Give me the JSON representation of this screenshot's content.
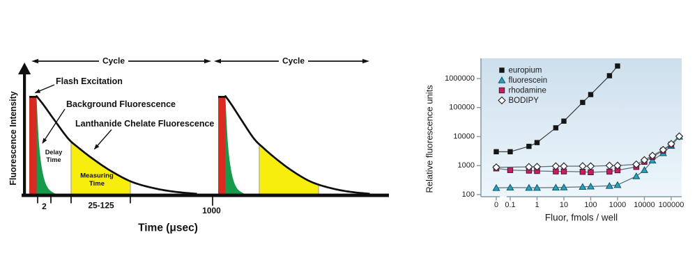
{
  "page": {
    "background": "#ffffff"
  },
  "chart_data": [
    {
      "id": "time-resolved-fluorescence-cycle",
      "type": "area",
      "title": "",
      "xlabel": "Time (μsec)",
      "ylabel": "Fluorescence Intensity",
      "cycle_label": "Cycle",
      "annotations": {
        "flash": "Flash Excitation",
        "background": "Background Fluorescence",
        "lanthanide": "Lanthanide Chelate Fluorescence"
      },
      "region_labels": {
        "delay": [
          "Delay",
          "Time"
        ],
        "measuring": [
          "Measuring",
          "Time"
        ]
      },
      "x_tick_labels": [
        "2",
        "25-125",
        "1000"
      ],
      "delay_time_usec": "2",
      "measuring_time_usec": "25-125",
      "cycle_time_usec": "1000",
      "colors": {
        "flash_pulse": "#d92b22",
        "background_fluorescence": "#169a4b",
        "measuring_window": "#f8ee0e",
        "curve": "#0f0f0f",
        "axis": "#0f0f0f",
        "region_edge": "#9a9a9a",
        "text": "#111111"
      }
    },
    {
      "id": "fluor-dose-response",
      "type": "line",
      "title": "",
      "xlabel": "Fluor, fmols / well",
      "ylabel": "Relative fluorescence units",
      "x_scale": "log",
      "y_scale": "log",
      "x_tick_labels": [
        "0",
        "0.1",
        "1",
        "10",
        "100",
        "1000",
        "10000",
        "100000"
      ],
      "y_tick_labels": [
        "100",
        "1000",
        "10000",
        "100000",
        "1000000"
      ],
      "ylim": [
        100,
        3000000
      ],
      "grid": false,
      "legend_position": "top-left",
      "plot_bg_top": "#cddfed",
      "plot_bg_bottom": "#edf6fb",
      "axis_color": "#8298a6",
      "text_color": "#1b1b1b",
      "series": [
        {
          "name": "europium",
          "marker": "filled-square",
          "color": "#161616",
          "edge": "#161616",
          "line_color": "#3f3f3f",
          "x": [
            0,
            0.1,
            0.5,
            1,
            5,
            10,
            50,
            100,
            500,
            1000
          ],
          "y": [
            3000,
            3000,
            4600,
            6200,
            20000,
            34000,
            150000,
            280000,
            1250000,
            2700000
          ]
        },
        {
          "name": "fluorescein",
          "marker": "filled-triangle",
          "color": "#2ba0bc",
          "edge": "#0d5468",
          "line_color": "#5d6d79",
          "x": [
            0,
            0.1,
            0.5,
            1,
            5,
            10,
            50,
            100,
            500,
            1000,
            5000,
            10000,
            20000,
            50000,
            100000,
            200000
          ],
          "y": [
            170,
            175,
            172,
            172,
            175,
            178,
            185,
            190,
            200,
            215,
            430,
            700,
            1500,
            2700,
            4800,
            10000
          ]
        },
        {
          "name": "rhodamine",
          "marker": "filled-square",
          "color": "#c81e60",
          "edge": "#4d1030",
          "line_color": "#5d6d79",
          "x": [
            0,
            0.1,
            0.5,
            1,
            5,
            10,
            50,
            100,
            500,
            1000,
            5000,
            10000,
            20000,
            50000,
            100000
          ],
          "y": [
            800,
            700,
            670,
            650,
            630,
            630,
            610,
            590,
            620,
            690,
            900,
            1350,
            2000,
            3300,
            5300
          ]
        },
        {
          "name": "BODIPY",
          "marker": "open-diamond",
          "color": "#ffffff",
          "edge": "#2a2a2a",
          "line_color": "#5d6d79",
          "x": [
            0,
            0.5,
            1,
            5,
            10,
            50,
            100,
            500,
            1000,
            5000,
            10000,
            20000,
            50000,
            100000,
            200000
          ],
          "y": [
            870,
            900,
            910,
            950,
            950,
            960,
            950,
            1000,
            1000,
            1100,
            1550,
            2200,
            3500,
            5600,
            10200
          ]
        }
      ]
    }
  ]
}
